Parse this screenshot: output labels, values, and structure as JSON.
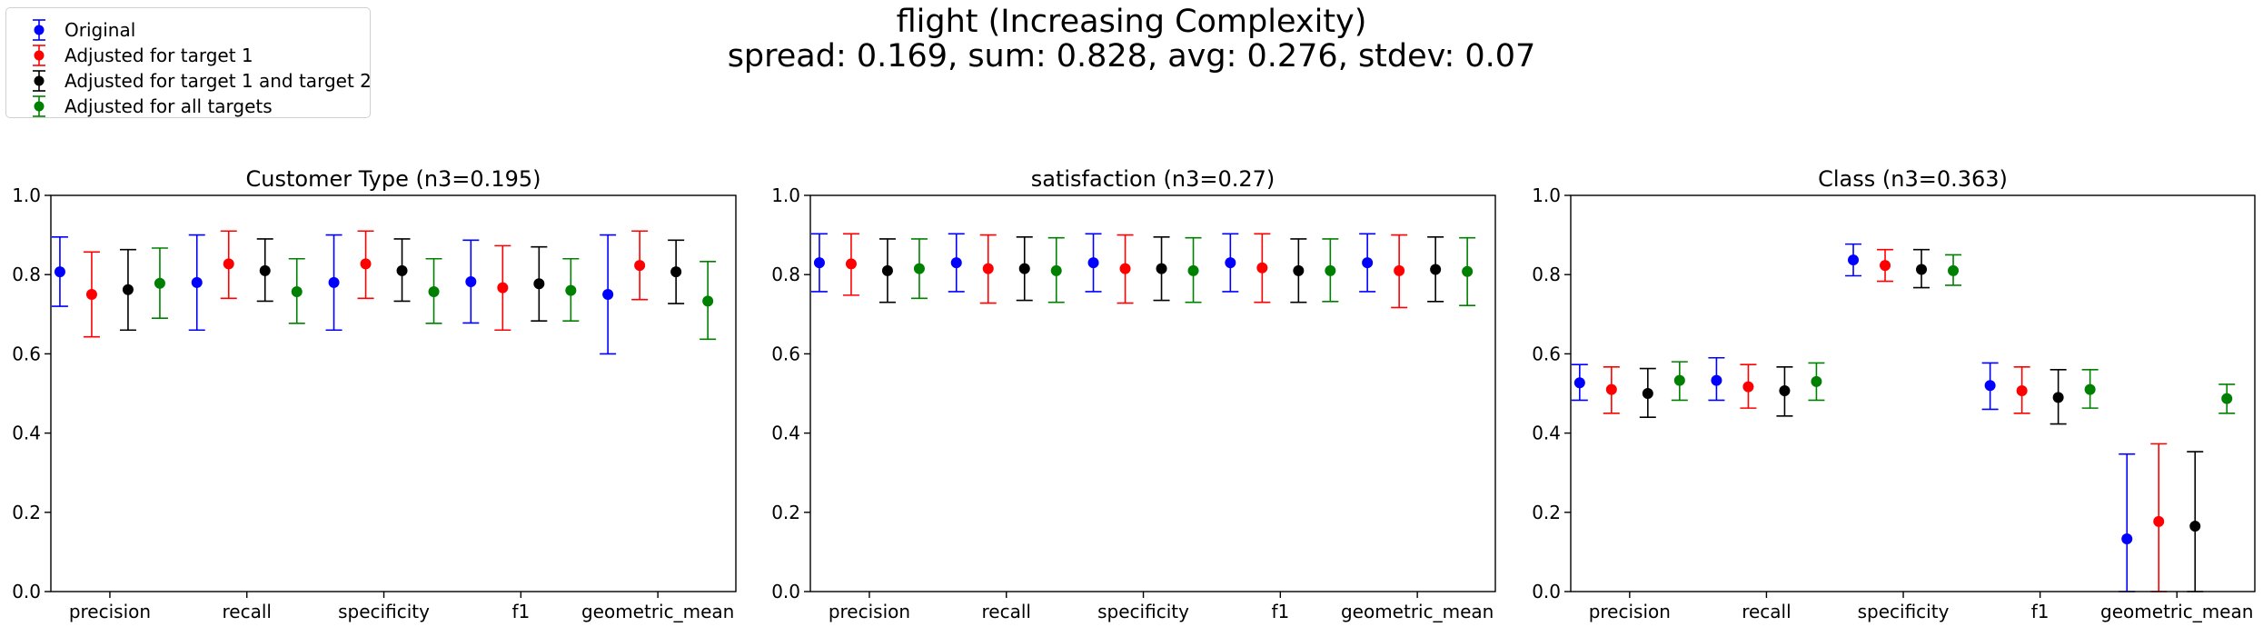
{
  "figure": {
    "title": "flight (Increasing Complexity)",
    "subtitle": "spread: 0.169, sum: 0.828, avg: 0.276, stdev: 0.07"
  },
  "legend": {
    "placement": "upper-left",
    "entries": [
      {
        "label": "Original",
        "color": "#0000ff"
      },
      {
        "label": "Adjusted for target 1",
        "color": "#ff0000"
      },
      {
        "label": "Adjusted for target 1 and target 2",
        "color": "#000000"
      },
      {
        "label": "Adjusted for all targets",
        "color": "#008000"
      }
    ]
  },
  "chart_data": [
    {
      "type": "scatter",
      "title": "Customer Type (n3=0.195)",
      "categories": [
        "precision",
        "recall",
        "specificity",
        "f1",
        "geometric_mean"
      ],
      "ylim": [
        0,
        1.0
      ],
      "yticks": [
        "0.0",
        "0.2",
        "0.4",
        "0.6",
        "0.8",
        "1.0"
      ],
      "grid": false,
      "series": [
        {
          "name": "Original",
          "color": "#0000ff",
          "values": [
            0.807,
            0.78,
            0.78,
            0.782,
            0.75
          ],
          "lower": [
            0.72,
            0.66,
            0.66,
            0.678,
            0.6
          ],
          "upper": [
            0.895,
            0.9,
            0.9,
            0.887,
            0.9
          ]
        },
        {
          "name": "Adjusted for target 1",
          "color": "#ff0000",
          "values": [
            0.75,
            0.827,
            0.827,
            0.767,
            0.823
          ],
          "lower": [
            0.643,
            0.74,
            0.74,
            0.66,
            0.737
          ],
          "upper": [
            0.857,
            0.91,
            0.91,
            0.873,
            0.91
          ]
        },
        {
          "name": "Adjusted for target 1 and target 2",
          "color": "#000000",
          "values": [
            0.762,
            0.81,
            0.81,
            0.777,
            0.807
          ],
          "lower": [
            0.66,
            0.733,
            0.733,
            0.683,
            0.727
          ],
          "upper": [
            0.863,
            0.89,
            0.89,
            0.87,
            0.887
          ]
        },
        {
          "name": "Adjusted for all targets",
          "color": "#008000",
          "values": [
            0.778,
            0.757,
            0.757,
            0.76,
            0.733
          ],
          "lower": [
            0.69,
            0.677,
            0.677,
            0.683,
            0.637
          ],
          "upper": [
            0.867,
            0.84,
            0.84,
            0.84,
            0.833
          ]
        }
      ]
    },
    {
      "type": "scatter",
      "title": "satisfaction (n3=0.27)",
      "categories": [
        "precision",
        "recall",
        "specificity",
        "f1",
        "geometric_mean"
      ],
      "ylim": [
        0,
        1.0
      ],
      "yticks": [
        "0.0",
        "0.2",
        "0.4",
        "0.6",
        "0.8",
        "1.0"
      ],
      "grid": false,
      "series": [
        {
          "name": "Original",
          "color": "#0000ff",
          "values": [
            0.83,
            0.83,
            0.83,
            0.83,
            0.83
          ],
          "lower": [
            0.757,
            0.757,
            0.757,
            0.757,
            0.757
          ],
          "upper": [
            0.903,
            0.903,
            0.903,
            0.903,
            0.903
          ]
        },
        {
          "name": "Adjusted for target 1",
          "color": "#ff0000",
          "values": [
            0.827,
            0.815,
            0.815,
            0.817,
            0.81
          ],
          "lower": [
            0.748,
            0.728,
            0.728,
            0.73,
            0.717
          ],
          "upper": [
            0.903,
            0.9,
            0.9,
            0.903,
            0.9
          ]
        },
        {
          "name": "Adjusted for target 1 and target 2",
          "color": "#000000",
          "values": [
            0.81,
            0.815,
            0.815,
            0.81,
            0.813
          ],
          "lower": [
            0.73,
            0.735,
            0.735,
            0.73,
            0.732
          ],
          "upper": [
            0.89,
            0.895,
            0.895,
            0.89,
            0.895
          ]
        },
        {
          "name": "Adjusted for all targets",
          "color": "#008000",
          "values": [
            0.815,
            0.81,
            0.81,
            0.81,
            0.808
          ],
          "lower": [
            0.74,
            0.73,
            0.73,
            0.732,
            0.722
          ],
          "upper": [
            0.89,
            0.893,
            0.893,
            0.89,
            0.893
          ]
        }
      ]
    },
    {
      "type": "scatter",
      "title": "Class (n3=0.363)",
      "categories": [
        "precision",
        "recall",
        "specificity",
        "f1",
        "geometric_mean"
      ],
      "ylim": [
        0,
        1.0
      ],
      "yticks": [
        "0.0",
        "0.2",
        "0.4",
        "0.6",
        "0.8",
        "1.0"
      ],
      "grid": false,
      "series": [
        {
          "name": "Original",
          "color": "#0000ff",
          "values": [
            0.527,
            0.533,
            0.837,
            0.52,
            0.133
          ],
          "lower": [
            0.483,
            0.483,
            0.797,
            0.46,
            0.0
          ],
          "upper": [
            0.573,
            0.59,
            0.877,
            0.577,
            0.347
          ]
        },
        {
          "name": "Adjusted for target 1",
          "color": "#ff0000",
          "values": [
            0.51,
            0.517,
            0.823,
            0.507,
            0.177
          ],
          "lower": [
            0.45,
            0.463,
            0.783,
            0.45,
            0.0
          ],
          "upper": [
            0.567,
            0.573,
            0.863,
            0.567,
            0.373
          ]
        },
        {
          "name": "Adjusted for target 1 and target 2",
          "color": "#000000",
          "values": [
            0.5,
            0.507,
            0.813,
            0.49,
            0.165
          ],
          "lower": [
            0.44,
            0.443,
            0.767,
            0.423,
            0.0
          ],
          "upper": [
            0.563,
            0.567,
            0.863,
            0.56,
            0.353
          ]
        },
        {
          "name": "Adjusted for all targets",
          "color": "#008000",
          "values": [
            0.533,
            0.53,
            0.81,
            0.51,
            0.487
          ],
          "lower": [
            0.483,
            0.483,
            0.773,
            0.463,
            0.45
          ],
          "upper": [
            0.58,
            0.577,
            0.85,
            0.56,
            0.523
          ]
        }
      ]
    }
  ]
}
